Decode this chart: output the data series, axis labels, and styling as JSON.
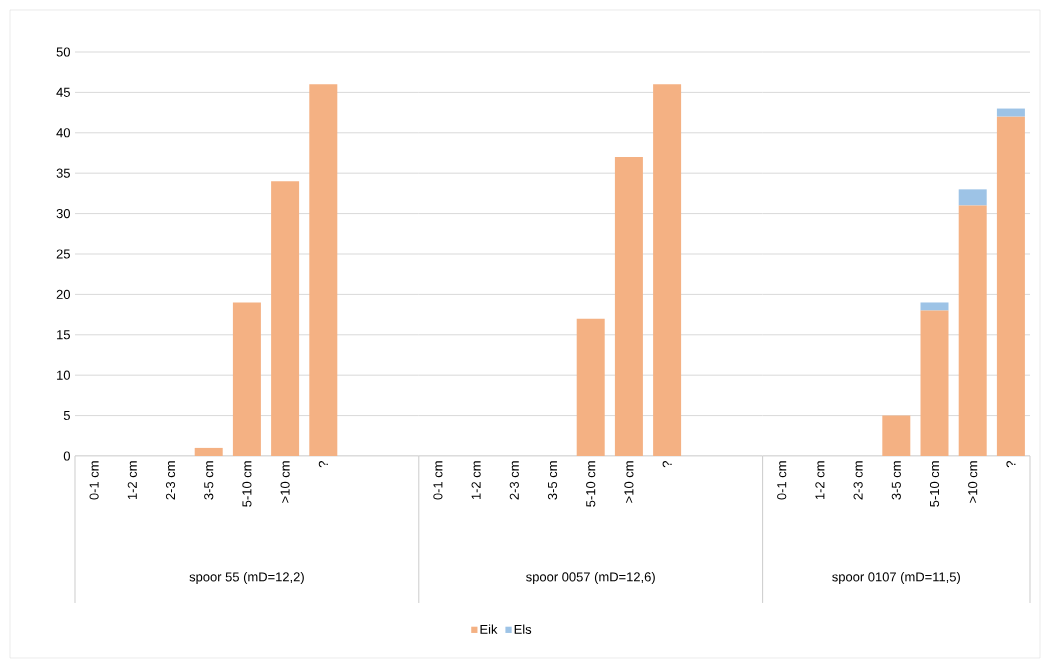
{
  "chart_data": [
    {
      "type": "bar",
      "xlabel": "spoor 55 (mD=12,2)",
      "categories": [
        "0-1 cm",
        "1-2 cm",
        "2-3 cm",
        "3-5 cm",
        "5-10 cm",
        ">10 cm",
        "?",
        null,
        null
      ],
      "series": [
        {
          "color": "#f4b183",
          "values": [
            0,
            0,
            0,
            1,
            19,
            34,
            46,
            null,
            null
          ]
        }
      ],
      "stacked": true,
      "ylim": [
        0,
        50
      ],
      "yticks": [
        0,
        5,
        10,
        15,
        20,
        25,
        30,
        35,
        40,
        45,
        50
      ],
      "grid": "y"
    },
    {
      "type": "bar",
      "xlabel": "spoor 0057 (mD=12,6)",
      "categories": [
        "0-1 cm",
        "1-2 cm",
        "2-3 cm",
        "3-5 cm",
        "5-10 cm",
        ">10 cm",
        "?",
        null,
        null
      ],
      "series": [
        {
          "color": "#f4b183",
          "values": [
            0,
            0,
            0,
            0,
            17,
            37,
            46,
            null,
            null
          ]
        }
      ],
      "stacked": true,
      "ylim": [
        0,
        50
      ],
      "yticks": [
        0,
        5,
        10,
        15,
        20,
        25,
        30,
        35,
        40,
        45,
        50
      ],
      "grid": "y",
      "tick_labels": "x"
    },
    {
      "type": "bar",
      "xlabel": "spoor 0107 (mD=11,5)",
      "categories": [
        "0-1 cm",
        "1-2 cm",
        "2-3 cm",
        "3-5 cm",
        "5-10 cm",
        ">10 cm",
        "?"
      ],
      "series": [
        {
          "name": "Eik",
          "color": "#f4b183",
          "values": [
            0,
            0,
            0,
            5,
            18,
            31,
            42
          ]
        },
        {
          "name": "Els",
          "color": "#9dc3e6",
          "values": [
            0,
            0,
            0,
            0,
            1,
            2,
            1
          ]
        }
      ],
      "stacked": true,
      "ylim": [
        0,
        50
      ],
      "yticks": [
        0,
        5,
        10,
        15,
        20,
        25,
        30,
        35,
        40,
        45,
        50
      ],
      "grid": "y",
      "tick_labels": "x",
      "legend": "bottom"
    }
  ]
}
